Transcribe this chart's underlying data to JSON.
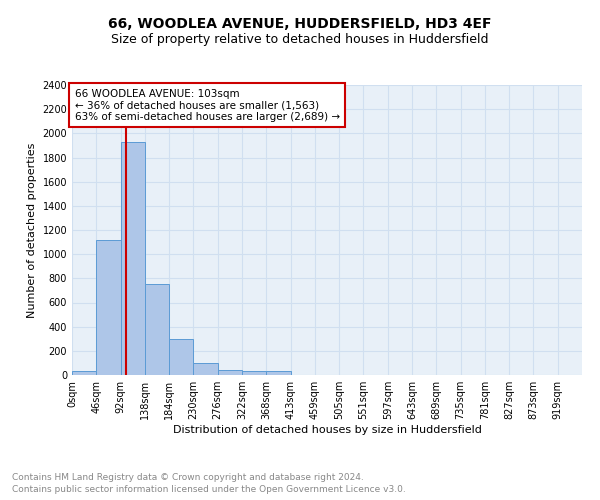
{
  "title": "66, WOODLEA AVENUE, HUDDERSFIELD, HD3 4EF",
  "subtitle": "Size of property relative to detached houses in Huddersfield",
  "xlabel": "Distribution of detached houses by size in Huddersfield",
  "ylabel": "Number of detached properties",
  "footnote1": "Contains HM Land Registry data © Crown copyright and database right 2024.",
  "footnote2": "Contains public sector information licensed under the Open Government Licence v3.0.",
  "bar_labels": [
    "0sqm",
    "46sqm",
    "92sqm",
    "138sqm",
    "184sqm",
    "230sqm",
    "276sqm",
    "322sqm",
    "368sqm",
    "413sqm",
    "459sqm",
    "505sqm",
    "551sqm",
    "597sqm",
    "643sqm",
    "689sqm",
    "735sqm",
    "781sqm",
    "827sqm",
    "873sqm",
    "919sqm"
  ],
  "bar_values": [
    30,
    1120,
    1930,
    750,
    300,
    100,
    45,
    30,
    30,
    0,
    0,
    0,
    0,
    0,
    0,
    0,
    0,
    0,
    0,
    0,
    0
  ],
  "bar_color": "#aec6e8",
  "bar_edge_color": "#5b9bd5",
  "grid_color": "#d0dff0",
  "annotation_line1": "66 WOODLEA AVENUE: 103sqm",
  "annotation_line2": "← 36% of detached houses are smaller (1,563)",
  "annotation_line3": "63% of semi-detached houses are larger (2,689) →",
  "annotation_box_color": "#ffffff",
  "annotation_box_edge": "#cc0000",
  "vline_x": 103,
  "vline_color": "#cc0000",
  "ylim": [
    0,
    2400
  ],
  "yticks": [
    0,
    200,
    400,
    600,
    800,
    1000,
    1200,
    1400,
    1600,
    1800,
    2000,
    2200,
    2400
  ],
  "bin_width": 46,
  "bg_color": "#ffffff",
  "plot_bg_color": "#e8f0f8",
  "title_fontsize": 10,
  "subtitle_fontsize": 9,
  "axis_label_fontsize": 8,
  "tick_fontsize": 7,
  "annot_fontsize": 7.5,
  "footnote_fontsize": 6.5
}
